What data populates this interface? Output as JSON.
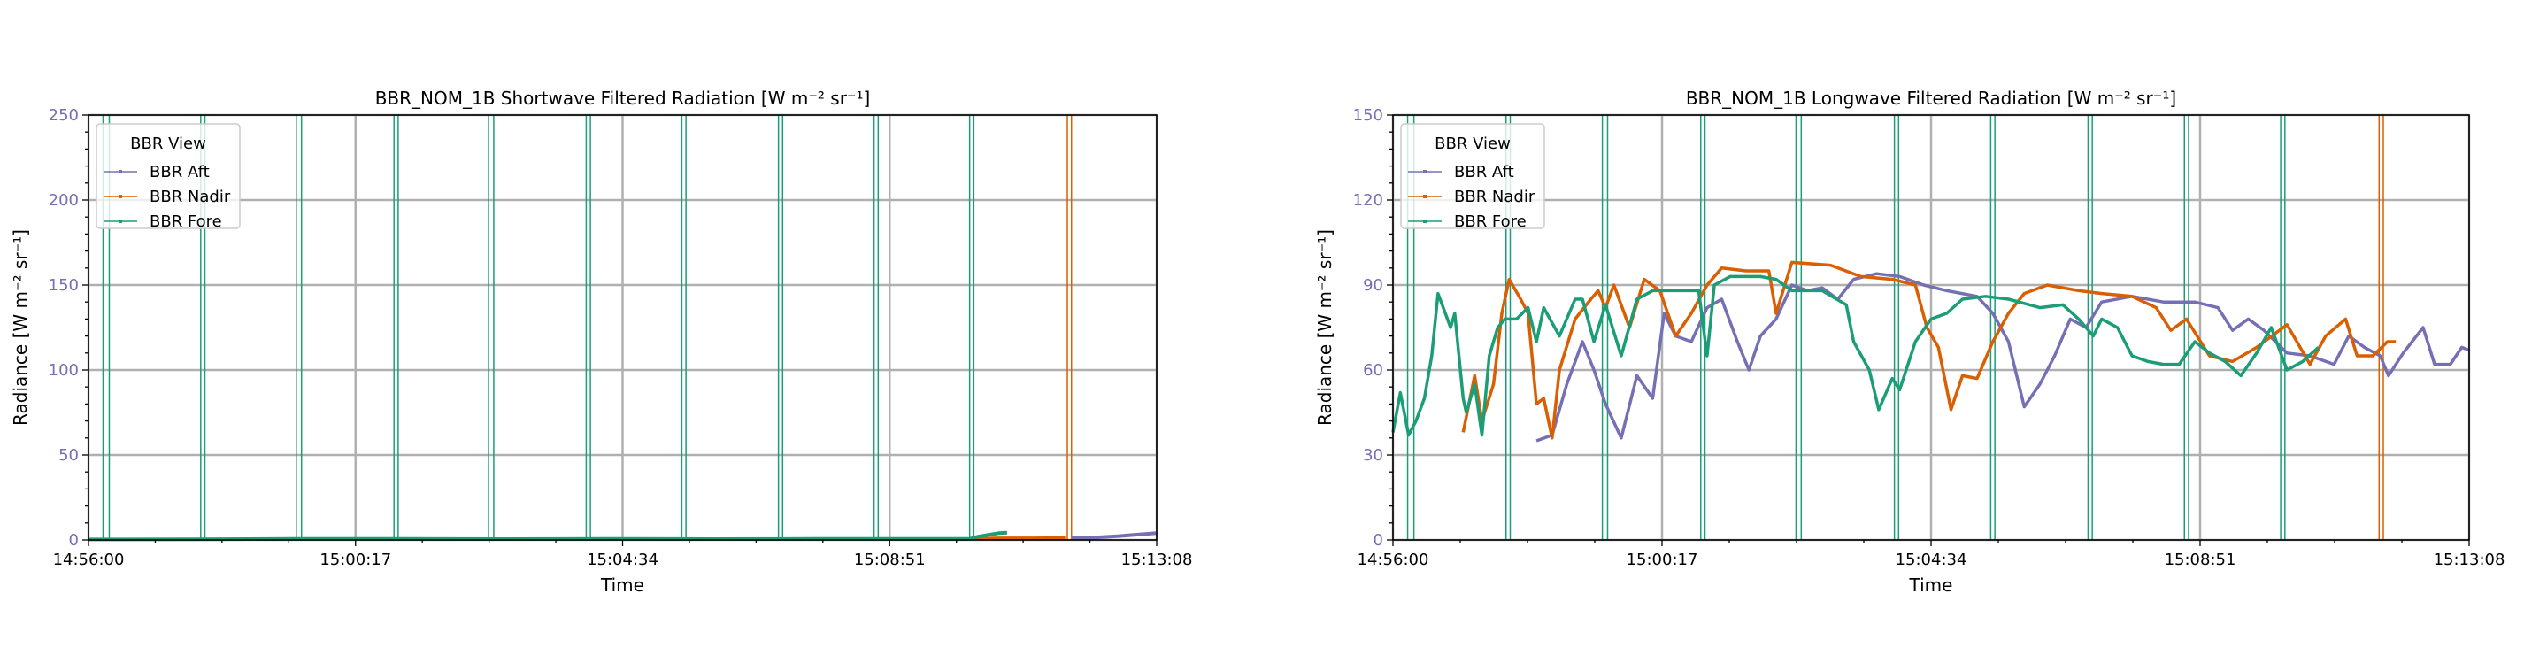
{
  "colors": {
    "aft": "#7570b3",
    "nadir": "#d95f02",
    "fore": "#1b9e77",
    "grid": "#b0b0b0",
    "tick_label": "#7570b3"
  },
  "chart_data": [
    {
      "type": "line",
      "title": "BBR_NOM_1B Shortwave Filtered Radiation [W m⁻² sr⁻¹]",
      "xlabel": "Time",
      "ylabel": "Radiance [W m⁻² sr⁻¹]",
      "x_unit": "seconds since 14:56:00",
      "xlim": [
        0,
        1028
      ],
      "ylim": [
        0,
        250
      ],
      "yticks": [
        0,
        50,
        100,
        150,
        200,
        250
      ],
      "xticks": [
        0,
        257,
        514,
        771,
        1028
      ],
      "xtick_labels": [
        "14:56:00",
        "15:00:17",
        "15:04:34",
        "15:08:51",
        "15:13:08"
      ],
      "grid": true,
      "legend": {
        "title": "BBR View",
        "placement": "top-left",
        "entries": [
          "BBR Aft",
          "BBR Nadir",
          "BBR Fore"
        ]
      },
      "series": [
        {
          "name": "BBR Aft",
          "key": "aft",
          "points": [
            [
              946,
              1
            ],
            [
              970,
              1.5
            ],
            [
              990,
              2.2
            ],
            [
              1010,
              3.2
            ],
            [
              1028,
              4
            ]
          ]
        },
        {
          "name": "BBR Nadir",
          "key": "nadir",
          "points": [
            [
              852,
              0.8
            ],
            [
              880,
              1
            ],
            [
              910,
              1
            ],
            [
              940,
              1.2
            ]
          ]
        },
        {
          "name": "BBR Fore",
          "key": "fore",
          "points": [
            [
              0,
              0.3
            ],
            [
              100,
              0.4
            ],
            [
              200,
              0.6
            ],
            [
              300,
              0.6
            ],
            [
              400,
              0.5
            ],
            [
              500,
              0.6
            ],
            [
              600,
              0.5
            ],
            [
              700,
              0.6
            ],
            [
              800,
              0.6
            ],
            [
              848,
              0.6
            ],
            [
              856,
              2
            ],
            [
              866,
              3
            ],
            [
              876,
              4
            ],
            [
              884,
              4.3
            ]
          ]
        }
      ],
      "spikes": [
        {
          "key": "fore",
          "x": [
            14,
            20,
            108,
            112,
            200,
            205,
            294,
            298,
            385,
            390,
            479,
            483,
            571,
            575,
            664,
            668,
            756,
            760,
            848,
            852
          ]
        },
        {
          "key": "nadir",
          "x": [
            942,
            946
          ]
        }
      ]
    },
    {
      "type": "line",
      "title": "BBR_NOM_1B Longwave Filtered Radiation [W m⁻² sr⁻¹]",
      "xlabel": "Time",
      "ylabel": "Radiance [W m⁻² sr⁻¹]",
      "x_unit": "seconds since 14:56:00",
      "xlim": [
        0,
        1028
      ],
      "ylim": [
        0,
        150
      ],
      "yticks": [
        0,
        30,
        60,
        90,
        120,
        150
      ],
      "xticks": [
        0,
        257,
        514,
        771,
        1028
      ],
      "xtick_labels": [
        "14:56:00",
        "15:00:17",
        "15:04:34",
        "15:08:51",
        "15:13:08"
      ],
      "grid": true,
      "legend": {
        "title": "BBR View",
        "placement": "top-left",
        "entries": [
          "BBR Aft",
          "BBR Nadir",
          "BBR Fore"
        ]
      },
      "series": [
        {
          "name": "BBR Aft",
          "key": "aft",
          "points": [
            [
              137,
              35
            ],
            [
              152,
              37
            ],
            [
              166,
              55
            ],
            [
              181,
              70
            ],
            [
              192,
              60
            ],
            [
              203,
              48
            ],
            [
              218,
              36
            ],
            [
              233,
              58
            ],
            [
              248,
              50
            ],
            [
              259,
              80
            ],
            [
              270,
              72
            ],
            [
              285,
              70
            ],
            [
              300,
              82
            ],
            [
              314,
              85
            ],
            [
              329,
              70
            ],
            [
              340,
              60
            ],
            [
              351,
              72
            ],
            [
              366,
              78
            ],
            [
              381,
              90
            ],
            [
              396,
              88
            ],
            [
              410,
              89
            ],
            [
              425,
              85
            ],
            [
              440,
              92
            ],
            [
              462,
              94
            ],
            [
              484,
              93
            ],
            [
              507,
              90
            ],
            [
              529,
              88
            ],
            [
              558,
              86
            ],
            [
              573,
              80
            ],
            [
              588,
              70
            ],
            [
              603,
              47
            ],
            [
              618,
              55
            ],
            [
              632,
              65
            ],
            [
              647,
              78
            ],
            [
              662,
              75
            ],
            [
              677,
              84
            ],
            [
              706,
              86
            ],
            [
              736,
              84
            ],
            [
              766,
              84
            ],
            [
              788,
              82
            ],
            [
              802,
              74
            ],
            [
              817,
              78
            ],
            [
              832,
              74
            ],
            [
              854,
              66
            ],
            [
              876,
              65
            ],
            [
              899,
              62
            ],
            [
              913,
              72
            ],
            [
              928,
              68
            ],
            [
              943,
              65
            ],
            [
              951,
              58
            ],
            [
              965,
              66
            ],
            [
              984,
              75
            ],
            [
              995,
              62
            ],
            [
              1010,
              62
            ],
            [
              1021,
              68
            ],
            [
              1028,
              67
            ]
          ]
        },
        {
          "name": "BBR Nadir",
          "key": "nadir",
          "points": [
            [
              67,
              38
            ],
            [
              78,
              58
            ],
            [
              85,
              42
            ],
            [
              96,
              55
            ],
            [
              104,
              80
            ],
            [
              111,
              92
            ],
            [
              122,
              85
            ],
            [
              129,
              80
            ],
            [
              137,
              48
            ],
            [
              144,
              50
            ],
            [
              152,
              36
            ],
            [
              159,
              60
            ],
            [
              174,
              78
            ],
            [
              189,
              85
            ],
            [
              196,
              88
            ],
            [
              203,
              82
            ],
            [
              211,
              90
            ],
            [
              226,
              75
            ],
            [
              240,
              92
            ],
            [
              255,
              88
            ],
            [
              270,
              72
            ],
            [
              285,
              80
            ],
            [
              300,
              90
            ],
            [
              314,
              96
            ],
            [
              337,
              95
            ],
            [
              359,
              95
            ],
            [
              366,
              80
            ],
            [
              381,
              98
            ],
            [
              418,
              97
            ],
            [
              447,
              93
            ],
            [
              477,
              92
            ],
            [
              499,
              90
            ],
            [
              510,
              75
            ],
            [
              521,
              68
            ],
            [
              533,
              46
            ],
            [
              544,
              58
            ],
            [
              558,
              57
            ],
            [
              573,
              70
            ],
            [
              588,
              80
            ],
            [
              603,
              87
            ],
            [
              625,
              90
            ],
            [
              655,
              88
            ],
            [
              677,
              87
            ],
            [
              706,
              86
            ],
            [
              729,
              82
            ],
            [
              743,
              74
            ],
            [
              758,
              78
            ],
            [
              780,
              65
            ],
            [
              802,
              63
            ],
            [
              825,
              68
            ],
            [
              854,
              76
            ],
            [
              876,
              62
            ],
            [
              891,
              72
            ],
            [
              910,
              78
            ],
            [
              921,
              65
            ],
            [
              936,
              65
            ],
            [
              950,
              70
            ],
            [
              958,
              70
            ]
          ]
        },
        {
          "name": "BBR Fore",
          "key": "fore",
          "points": [
            [
              0,
              38
            ],
            [
              7,
              52
            ],
            [
              15,
              37
            ],
            [
              22,
              42
            ],
            [
              30,
              50
            ],
            [
              37,
              65
            ],
            [
              43,
              87
            ],
            [
              48,
              82
            ],
            [
              55,
              75
            ],
            [
              59,
              80
            ],
            [
              67,
              50
            ],
            [
              70,
              45
            ],
            [
              78,
              55
            ],
            [
              85,
              37
            ],
            [
              92,
              65
            ],
            [
              100,
              75
            ],
            [
              107,
              78
            ],
            [
              118,
              78
            ],
            [
              129,
              82
            ],
            [
              137,
              70
            ],
            [
              144,
              82
            ],
            [
              159,
              72
            ],
            [
              174,
              85
            ],
            [
              181,
              85
            ],
            [
              192,
              70
            ],
            [
              203,
              83
            ],
            [
              218,
              65
            ],
            [
              233,
              85
            ],
            [
              248,
              88
            ],
            [
              270,
              88
            ],
            [
              292,
              88
            ],
            [
              300,
              65
            ],
            [
              307,
              90
            ],
            [
              322,
              93
            ],
            [
              351,
              93
            ],
            [
              366,
              92
            ],
            [
              381,
              88
            ],
            [
              410,
              88
            ],
            [
              433,
              83
            ],
            [
              440,
              70
            ],
            [
              455,
              60
            ],
            [
              464,
              46
            ],
            [
              477,
              57
            ],
            [
              484,
              53
            ],
            [
              499,
              70
            ],
            [
              514,
              78
            ],
            [
              529,
              80
            ],
            [
              544,
              85
            ],
            [
              566,
              86
            ],
            [
              588,
              85
            ],
            [
              618,
              82
            ],
            [
              640,
              83
            ],
            [
              655,
              78
            ],
            [
              669,
              72
            ],
            [
              677,
              78
            ],
            [
              692,
              75
            ],
            [
              706,
              65
            ],
            [
              721,
              63
            ],
            [
              736,
              62
            ],
            [
              751,
              62
            ],
            [
              766,
              70
            ],
            [
              780,
              66
            ],
            [
              795,
              63
            ],
            [
              810,
              58
            ],
            [
              825,
              66
            ],
            [
              839,
              75
            ],
            [
              854,
              60
            ],
            [
              869,
              63
            ],
            [
              884,
              68
            ]
          ]
        }
      ],
      "spikes": [
        {
          "key": "fore",
          "x": [
            14,
            20,
            108,
            112,
            200,
            205,
            294,
            298,
            385,
            390,
            479,
            483,
            571,
            575,
            664,
            668,
            756,
            760,
            848,
            852
          ]
        },
        {
          "key": "nadir",
          "x": [
            942,
            946
          ]
        }
      ]
    }
  ]
}
